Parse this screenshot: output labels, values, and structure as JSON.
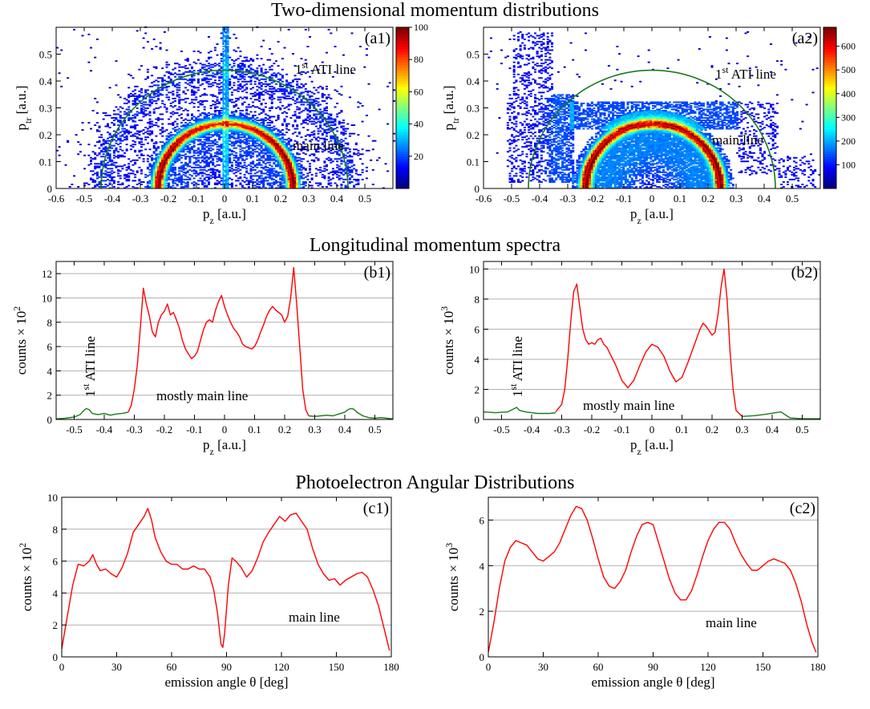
{
  "section_titles": {
    "two_d": "Two-dimensional momentum distributions",
    "longitudinal": "Longitudinal momentum spectra",
    "pad": "Photoelectron Angular Distributions"
  },
  "chart_data": [
    {
      "id": "a1",
      "type": "heatmap",
      "panel_label": "(a1)",
      "xlabel": "p_z [a.u.]",
      "ylabel": "p_tr [a.u.]",
      "xlim": [
        -0.6,
        0.6
      ],
      "ylim": [
        0,
        0.6
      ],
      "xticks": [
        -0.6,
        -0.5,
        -0.4,
        -0.3,
        -0.2,
        -0.1,
        0,
        0.1,
        0.2,
        0.3,
        0.4,
        0.5
      ],
      "yticks": [
        0,
        0.1,
        0.2,
        0.3,
        0.4,
        0.5
      ],
      "colorbar": {
        "min": 0,
        "max": 100,
        "ticks": [
          20,
          40,
          60,
          80,
          100
        ],
        "colormap": "jet"
      },
      "structures": {
        "main_line_radius": 0.24,
        "ati_line_radius": 0.44,
        "vertical_stripe_at_pz": 0
      },
      "annotations": [
        {
          "text": "1st ATI line",
          "color": "#1a7a1a"
        },
        {
          "text": "main line",
          "color": "#ff0000"
        }
      ],
      "circles": [
        {
          "name": "main line",
          "radius": 0.24,
          "color": "#ff0000"
        },
        {
          "name": "1st ATI line",
          "radius": 0.44,
          "color": "#1a7a1a"
        }
      ]
    },
    {
      "id": "a2",
      "type": "heatmap",
      "panel_label": "(a2)",
      "xlabel": "p_z [a.u.]",
      "ylabel": "p_tr [a.u.]",
      "xlim": [
        -0.6,
        0.6
      ],
      "ylim": [
        0,
        0.6
      ],
      "xticks": [
        -0.6,
        -0.5,
        -0.4,
        -0.3,
        -0.2,
        -0.1,
        0,
        0.1,
        0.2,
        0.3,
        0.4,
        0.5
      ],
      "yticks": [
        0,
        0.1,
        0.2,
        0.3,
        0.4,
        0.5
      ],
      "colorbar": {
        "min": 0,
        "max": 680,
        "ticks": [
          100,
          200,
          300,
          400,
          500,
          600
        ],
        "colormap": "jet"
      },
      "structures": {
        "main_line_radius": 0.24,
        "ati_line_radius": 0.44
      },
      "annotations": [
        {
          "text": "1st ATI line",
          "color": "#1a7a1a"
        },
        {
          "text": "main line",
          "color": "#ff0000"
        }
      ],
      "circles": [
        {
          "name": "main line",
          "radius": 0.24,
          "color": "#ff0000"
        },
        {
          "name": "1st ATI line",
          "radius": 0.44,
          "color": "#1a7a1a"
        }
      ]
    },
    {
      "id": "b1",
      "type": "line",
      "panel_label": "(b1)",
      "xlabel": "p_z [a.u.]",
      "ylabel": "counts × 10^2",
      "xlim": [
        -0.56,
        0.56
      ],
      "ylim": [
        0,
        13
      ],
      "xticks": [
        -0.5,
        -0.4,
        -0.3,
        -0.2,
        -0.1,
        0,
        0.1,
        0.2,
        0.3,
        0.4,
        0.5
      ],
      "yticks": [
        0,
        2,
        4,
        6,
        8,
        10,
        12
      ],
      "grid": "horizontal",
      "annotations": [
        {
          "text": "1st ATI line",
          "color": "#1a7a1a"
        },
        {
          "text": "mostly main line",
          "color": "#ff0000"
        }
      ],
      "series": [
        {
          "color": "#1a7a1a",
          "x": [
            -0.56,
            -0.53,
            -0.5,
            -0.48,
            -0.47,
            -0.46,
            -0.45,
            -0.44,
            -0.42,
            -0.4,
            -0.38,
            -0.36,
            -0.34,
            -0.33,
            -0.32
          ],
          "y": [
            0.05,
            0.1,
            0.2,
            0.4,
            0.7,
            0.9,
            0.8,
            0.5,
            0.4,
            0.5,
            0.35,
            0.45,
            0.5,
            0.55,
            0.6
          ]
        },
        {
          "color": "#ff0000",
          "x": [
            -0.32,
            -0.31,
            -0.3,
            -0.29,
            -0.28,
            -0.27,
            -0.26,
            -0.25,
            -0.24,
            -0.23,
            -0.22,
            -0.21,
            -0.2,
            -0.19,
            -0.18,
            -0.17,
            -0.16,
            -0.15,
            -0.14,
            -0.13,
            -0.12,
            -0.11,
            -0.1,
            -0.09,
            -0.08,
            -0.07,
            -0.06,
            -0.05,
            -0.04,
            -0.03,
            -0.02,
            -0.01,
            0,
            0.01,
            0.02,
            0.03,
            0.04,
            0.05,
            0.06,
            0.07,
            0.08,
            0.09,
            0.1,
            0.11,
            0.12,
            0.13,
            0.14,
            0.15,
            0.16,
            0.17,
            0.18,
            0.19,
            0.2,
            0.21,
            0.22,
            0.23,
            0.24,
            0.25,
            0.26,
            0.27,
            0.28
          ],
          "y": [
            0.6,
            1.2,
            2.5,
            4.5,
            7.5,
            10.8,
            9.5,
            8.5,
            7.2,
            6.8,
            8.0,
            8.6,
            8.9,
            9.5,
            8.6,
            8.8,
            8.2,
            7.5,
            6.5,
            5.8,
            5.4,
            5.0,
            5.2,
            5.6,
            6.5,
            7.4,
            8.0,
            8.2,
            8.0,
            9.0,
            9.7,
            10.2,
            9.3,
            8.6,
            8.0,
            7.5,
            7.2,
            6.8,
            6.2,
            6.0,
            5.9,
            5.8,
            6.0,
            6.5,
            7.2,
            7.8,
            8.5,
            9.0,
            9.3,
            9.0,
            8.8,
            8.6,
            8.0,
            8.5,
            10.0,
            12.5,
            9.5,
            6.0,
            2.5,
            0.8,
            0.3
          ]
        },
        {
          "color": "#1a7a1a",
          "x": [
            0.28,
            0.3,
            0.32,
            0.34,
            0.36,
            0.38,
            0.4,
            0.41,
            0.42,
            0.43,
            0.44,
            0.46,
            0.48,
            0.5,
            0.52,
            0.54,
            0.56
          ],
          "y": [
            0.3,
            0.25,
            0.3,
            0.35,
            0.3,
            0.45,
            0.6,
            0.8,
            0.9,
            0.85,
            0.6,
            0.3,
            0.15,
            0.1,
            0.15,
            0.1,
            0.05
          ]
        }
      ]
    },
    {
      "id": "b2",
      "type": "line",
      "panel_label": "(b2)",
      "xlabel": "p_z [a.u.]",
      "ylabel": "counts × 10^3",
      "xlim": [
        -0.56,
        0.56
      ],
      "ylim": [
        0,
        10.5
      ],
      "xticks": [
        -0.5,
        -0.4,
        -0.3,
        -0.2,
        -0.1,
        0,
        0.1,
        0.2,
        0.3,
        0.4,
        0.5
      ],
      "yticks": [
        0,
        2,
        4,
        6,
        8,
        10
      ],
      "grid": "horizontal",
      "annotations": [
        {
          "text": "1st ATI line",
          "color": "#1a7a1a"
        },
        {
          "text": "mostly main line",
          "color": "#ff0000"
        }
      ],
      "series": [
        {
          "color": "#1a7a1a",
          "x": [
            -0.56,
            -0.52,
            -0.48,
            -0.46,
            -0.45,
            -0.44,
            -0.42,
            -0.4,
            -0.38,
            -0.36,
            -0.34,
            -0.32
          ],
          "y": [
            0.5,
            0.45,
            0.5,
            0.7,
            0.8,
            0.6,
            0.5,
            0.45,
            0.4,
            0.4,
            0.4,
            0.45
          ]
        },
        {
          "color": "#ff0000",
          "x": [
            -0.32,
            -0.3,
            -0.29,
            -0.28,
            -0.27,
            -0.26,
            -0.25,
            -0.24,
            -0.23,
            -0.22,
            -0.21,
            -0.2,
            -0.19,
            -0.18,
            -0.17,
            -0.16,
            -0.15,
            -0.14,
            -0.13,
            -0.12,
            -0.1,
            -0.08,
            -0.06,
            -0.04,
            -0.02,
            0,
            0.02,
            0.04,
            0.06,
            0.08,
            0.1,
            0.12,
            0.14,
            0.16,
            0.17,
            0.18,
            0.19,
            0.2,
            0.21,
            0.22,
            0.23,
            0.24,
            0.25,
            0.26,
            0.27,
            0.28,
            0.3
          ],
          "y": [
            0.5,
            1.0,
            2.0,
            4.0,
            6.5,
            8.5,
            9.0,
            7.5,
            6.0,
            5.3,
            5.0,
            5.1,
            5.0,
            5.3,
            5.4,
            5.0,
            4.8,
            4.4,
            4.0,
            3.6,
            2.6,
            2.1,
            2.6,
            3.6,
            4.5,
            5.0,
            4.8,
            4.2,
            3.2,
            2.5,
            2.8,
            3.8,
            4.9,
            6.0,
            6.4,
            6.2,
            5.9,
            5.6,
            5.8,
            7.0,
            8.8,
            10.0,
            8.0,
            4.5,
            2.0,
            0.6,
            0.2
          ]
        },
        {
          "color": "#1a7a1a",
          "x": [
            0.3,
            0.34,
            0.38,
            0.41,
            0.43,
            0.44,
            0.46,
            0.5,
            0.53,
            0.56
          ],
          "y": [
            0.2,
            0.25,
            0.35,
            0.45,
            0.5,
            0.35,
            0.1,
            0.05,
            0.05,
            0.05
          ]
        }
      ]
    },
    {
      "id": "c1",
      "type": "line",
      "panel_label": "(c1)",
      "xlabel": "emission angle θ [deg]",
      "ylabel": "counts × 10^2",
      "xlim": [
        0,
        180
      ],
      "ylim": [
        0,
        10
      ],
      "xticks": [
        0,
        30,
        60,
        90,
        120,
        150,
        180
      ],
      "yticks": [
        0,
        2,
        4,
        6,
        8,
        10
      ],
      "grid": "horizontal",
      "annotations": [
        {
          "text": "main line",
          "color": "#ff0000"
        }
      ],
      "series": [
        {
          "color": "#ff0000",
          "x": [
            0,
            3,
            6,
            9,
            12,
            15,
            17,
            19,
            21,
            24,
            27,
            30,
            33,
            36,
            39,
            42,
            45,
            47,
            49,
            51,
            54,
            57,
            60,
            63,
            66,
            69,
            72,
            75,
            78,
            81,
            83,
            85,
            87,
            88,
            89,
            91,
            93,
            95,
            98,
            101,
            104,
            107,
            110,
            113,
            116,
            119,
            122,
            125,
            128,
            131,
            134,
            137,
            140,
            143,
            146,
            149,
            152,
            155,
            158,
            161,
            164,
            167,
            170,
            173,
            176,
            179
          ],
          "y": [
            0.5,
            2.5,
            4.5,
            5.8,
            5.7,
            6.0,
            6.4,
            5.8,
            5.4,
            5.5,
            5.2,
            5.0,
            5.6,
            6.5,
            7.8,
            8.3,
            8.8,
            9.3,
            8.6,
            7.5,
            6.6,
            6.0,
            5.8,
            5.8,
            5.5,
            5.5,
            5.7,
            5.5,
            5.5,
            5.0,
            4.2,
            2.8,
            0.8,
            0.6,
            1.5,
            4.5,
            6.2,
            6.0,
            5.6,
            5.0,
            5.4,
            6.2,
            7.2,
            7.8,
            8.3,
            8.8,
            8.5,
            8.9,
            9.0,
            8.5,
            8.0,
            6.8,
            5.8,
            5.2,
            4.8,
            4.9,
            4.5,
            4.8,
            5.0,
            5.2,
            5.3,
            5.0,
            4.2,
            3.2,
            1.8,
            0.4
          ]
        }
      ]
    },
    {
      "id": "c2",
      "type": "line",
      "panel_label": "(c2)",
      "xlabel": "emission angle θ [deg]",
      "ylabel": "counts × 10^3",
      "xlim": [
        0,
        180
      ],
      "ylim": [
        0,
        7
      ],
      "xticks": [
        0,
        30,
        60,
        90,
        120,
        150,
        180
      ],
      "yticks": [
        0,
        2,
        4,
        6
      ],
      "grid": "horizontal",
      "annotations": [
        {
          "text": "main line",
          "color": "#ff0000"
        }
      ],
      "series": [
        {
          "color": "#ff0000",
          "x": [
            0,
            3,
            6,
            9,
            12,
            15,
            18,
            21,
            24,
            27,
            30,
            33,
            36,
            39,
            42,
            45,
            48,
            51,
            54,
            57,
            60,
            63,
            66,
            69,
            72,
            75,
            78,
            81,
            84,
            87,
            90,
            93,
            96,
            99,
            102,
            105,
            108,
            111,
            114,
            117,
            120,
            123,
            126,
            129,
            132,
            135,
            138,
            141,
            144,
            147,
            150,
            153,
            156,
            159,
            162,
            165,
            168,
            171,
            174,
            177,
            179
          ],
          "y": [
            0.2,
            1.5,
            3.0,
            4.2,
            4.8,
            5.1,
            5.0,
            4.9,
            4.6,
            4.3,
            4.2,
            4.4,
            4.6,
            5.0,
            5.6,
            6.2,
            6.6,
            6.5,
            6.0,
            5.2,
            4.3,
            3.5,
            3.1,
            3.0,
            3.3,
            3.8,
            4.6,
            5.3,
            5.8,
            5.9,
            5.8,
            5.0,
            4.2,
            3.4,
            2.8,
            2.5,
            2.5,
            2.9,
            3.6,
            4.4,
            5.1,
            5.6,
            5.9,
            5.9,
            5.6,
            5.0,
            4.5,
            4.1,
            3.8,
            3.8,
            4.0,
            4.2,
            4.3,
            4.2,
            4.1,
            3.8,
            3.2,
            2.4,
            1.4,
            0.6,
            0.2
          ]
        }
      ]
    }
  ]
}
